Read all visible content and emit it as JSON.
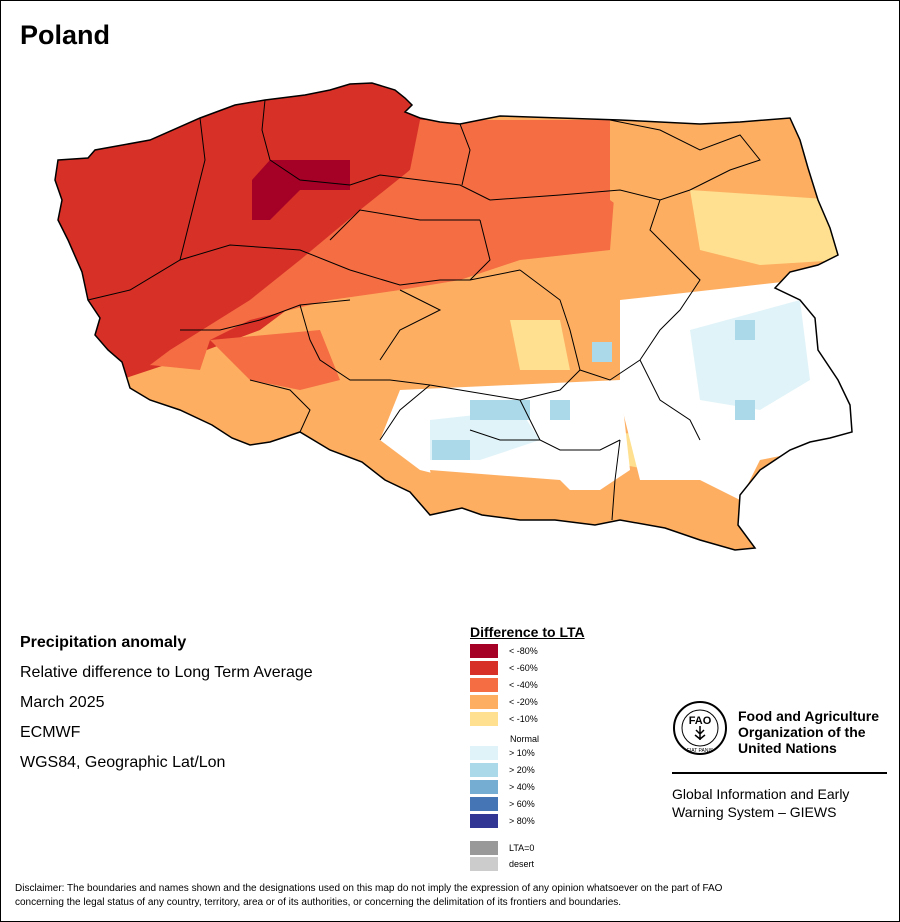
{
  "map_title": "Poland",
  "info": {
    "title": "Precipitation anomaly",
    "subtitle": "Relative difference to Long Term Average",
    "period": "March 2025",
    "source": "ECMWF",
    "projection": "WGS84, Geographic Lat/Lon"
  },
  "legend": {
    "title": "Difference to LTA",
    "items": [
      {
        "label": "< -80%",
        "color": "#a50026"
      },
      {
        "label": "< -60%",
        "color": "#d73027"
      },
      {
        "label": "< -40%",
        "color": "#f46d43"
      },
      {
        "label": "< -20%",
        "color": "#fdae61"
      },
      {
        "label": "< -10%",
        "color": "#fee090"
      },
      {
        "label": "Normal",
        "color": "#ffffff"
      },
      {
        "label": "> 10%",
        "color": "#e0f3f8"
      },
      {
        "label": "> 20%",
        "color": "#abd9e9"
      },
      {
        "label": "> 40%",
        "color": "#74add1"
      },
      {
        "label": "> 60%",
        "color": "#4575b4"
      },
      {
        "label": "> 80%",
        "color": "#313695"
      },
      {
        "label": "LTA=0",
        "color": "#999999"
      },
      {
        "label": "desert",
        "color": "#cccccc"
      }
    ]
  },
  "organization": {
    "logo_text": "FAO FIAT PANIS",
    "name_line1": "Food and Agriculture",
    "name_line2": "Organization of the",
    "name_line3": "United Nations",
    "system_line1": "Global Information and Early",
    "system_line2": "Warning System – GIEWS"
  },
  "disclaimer_line1": "Disclaimer: The boundaries and names shown and the designations used on this map do not imply the expression of any opinion whatsoever on the part of FAO",
  "disclaimer_line2": "concerning the legal status of any country, territory, area or of its authorities, or concerning the delimitation of its frontiers and boundaries."
}
